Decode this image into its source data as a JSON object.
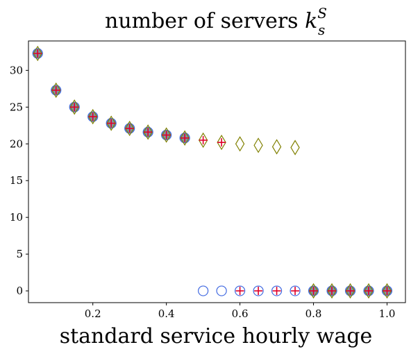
{
  "chart_data": {
    "type": "scatter",
    "title": "number of servers ",
    "title_math": {
      "base": "k",
      "sub": "s",
      "sup": "S"
    },
    "xlabel": "standard service hourly wage",
    "ylabel": "",
    "xlim": [
      0.025,
      1.05
    ],
    "ylim": [
      -1.6,
      34.0
    ],
    "x_ticks": [
      0.2,
      0.4,
      0.6,
      0.8,
      1.0
    ],
    "x_tick_labels": [
      "0.2",
      "0.4",
      "0.6",
      "0.8",
      "1.0"
    ],
    "y_ticks": [
      0,
      5,
      10,
      15,
      20,
      25,
      30
    ],
    "y_tick_labels": [
      "0",
      "5",
      "10",
      "15",
      "20",
      "25",
      "30"
    ],
    "grid": false,
    "legend": null,
    "series": [
      {
        "marker": "circle",
        "color": "#4169e1",
        "fill": "#7f94a3",
        "x": [
          0.05,
          0.1,
          0.15,
          0.2,
          0.25,
          0.3,
          0.35,
          0.4,
          0.45,
          0.5,
          0.55,
          0.6,
          0.65,
          0.7,
          0.75,
          0.8,
          0.85,
          0.9,
          0.95,
          1.0
        ],
        "y": [
          32.3,
          27.3,
          25.0,
          23.7,
          22.8,
          22.1,
          21.6,
          21.2,
          20.8,
          0,
          0,
          0,
          0,
          0,
          0,
          0,
          0,
          0,
          0,
          0
        ]
      },
      {
        "marker": "diamond",
        "color": "#808000",
        "x": [
          0.05,
          0.1,
          0.15,
          0.2,
          0.25,
          0.3,
          0.35,
          0.4,
          0.45,
          0.5,
          0.55,
          0.6,
          0.65,
          0.7,
          0.75,
          0.8,
          0.85,
          0.9,
          0.95,
          1.0
        ],
        "y": [
          32.3,
          27.3,
          25.0,
          23.7,
          22.8,
          22.1,
          21.6,
          21.2,
          20.8,
          20.5,
          20.2,
          20.0,
          19.8,
          19.6,
          19.5,
          0,
          0,
          0,
          0,
          0
        ]
      },
      {
        "marker": "plus",
        "color": "#e0002a",
        "x": [
          0.05,
          0.1,
          0.15,
          0.2,
          0.25,
          0.3,
          0.35,
          0.4,
          0.45,
          0.5,
          0.55,
          0.6,
          0.65,
          0.7,
          0.75,
          0.8,
          0.85,
          0.9,
          0.95,
          1.0
        ],
        "y": [
          32.3,
          27.3,
          25.0,
          23.7,
          22.8,
          22.1,
          21.6,
          21.2,
          20.8,
          20.5,
          20.2,
          0,
          0,
          0,
          0,
          0,
          0,
          0,
          0,
          0
        ]
      }
    ]
  }
}
